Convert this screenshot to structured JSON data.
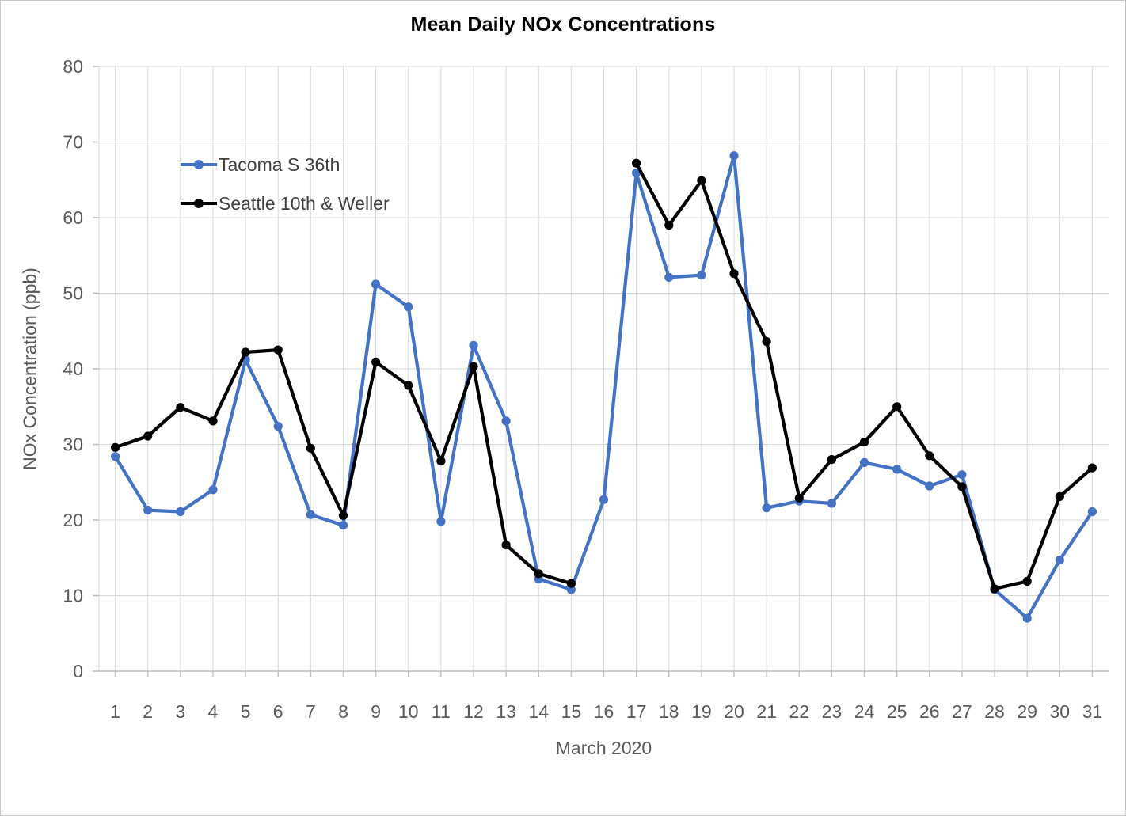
{
  "chart_data": {
    "type": "line",
    "title": "Mean Daily NOx Concentrations",
    "xlabel": "March 2020",
    "ylabel": "NOx Concentration (ppb)",
    "x": [
      1,
      2,
      3,
      4,
      5,
      6,
      7,
      8,
      9,
      10,
      11,
      12,
      13,
      14,
      15,
      16,
      17,
      18,
      19,
      20,
      21,
      22,
      23,
      24,
      25,
      26,
      27,
      28,
      29,
      30,
      31
    ],
    "ylim": [
      0,
      80
    ],
    "yticks": [
      0,
      10,
      20,
      30,
      40,
      50,
      60,
      70,
      80
    ],
    "grid": true,
    "legend_position": "inside top-left",
    "series": [
      {
        "name": "Tacoma S 36th",
        "color": "#4472C4",
        "values": [
          28.4,
          21.3,
          21.1,
          24.0,
          41.2,
          32.4,
          20.7,
          19.3,
          51.2,
          48.2,
          19.8,
          43.1,
          33.1,
          12.2,
          10.8,
          22.7,
          65.9,
          52.1,
          52.4,
          68.2,
          21.6,
          22.5,
          22.2,
          27.6,
          26.7,
          24.5,
          26.0,
          10.8,
          7.0,
          14.7,
          21.1
        ]
      },
      {
        "name": "Seattle 10th & Weller",
        "color": "#000000",
        "values": [
          29.6,
          31.1,
          34.9,
          33.1,
          42.2,
          42.5,
          29.5,
          20.6,
          40.9,
          37.8,
          27.8,
          40.3,
          16.7,
          12.9,
          11.6,
          null,
          67.2,
          59.0,
          64.9,
          52.6,
          43.6,
          22.9,
          28.0,
          30.3,
          35.0,
          28.5,
          24.4,
          10.9,
          11.9,
          23.1,
          26.9
        ]
      }
    ]
  },
  "styles": {
    "background": "#FFFFFF",
    "frame_border": "#C9C9C9",
    "gridline": "#D9D9D9",
    "axis_line": "#BFBFBF",
    "tick_label_color": "#595959",
    "axis_title_color": "#595959",
    "legend_text_color": "#404040",
    "title_color": "#000000"
  }
}
